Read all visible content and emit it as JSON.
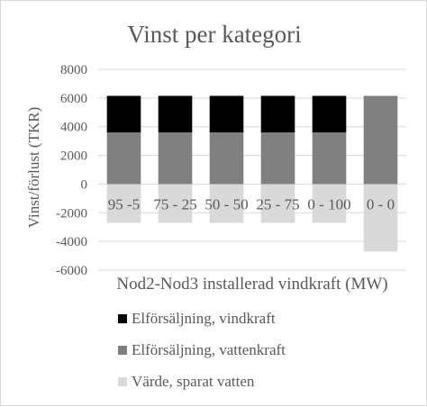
{
  "chart_data": {
    "type": "bar",
    "stacked": true,
    "title": "Vinst per kategori",
    "xlabel": "Nod2-Nod3 installerad vindkraft (MW)",
    "ylabel": "Vinst/förlust (TKR)",
    "ylim": [
      -6000,
      8000
    ],
    "yticks": [
      -6000,
      -4000,
      -2000,
      0,
      2000,
      4000,
      6000,
      8000
    ],
    "ytick_labels": [
      "-6000",
      "-4000",
      "-2000",
      "0",
      "2000",
      "4000",
      "6000",
      "8000"
    ],
    "grid": true,
    "legend_position": "bottom",
    "categories": [
      "95 -5",
      "75 - 25",
      "50 - 50",
      "25 - 75",
      "0 - 100",
      "0 - 0"
    ],
    "series": [
      {
        "name": "Värde, sparat vatten",
        "values": [
          -2700,
          -2700,
          -2700,
          -2700,
          -2700,
          -4700
        ],
        "color": "#d9d9d9"
      },
      {
        "name": "Elförsäljning, vattenkraft",
        "values": [
          3600,
          3600,
          3600,
          3600,
          3600,
          6150
        ],
        "color": "#808080"
      },
      {
        "name": "Elförsäljning, vindkraft",
        "values": [
          2550,
          2550,
          2550,
          2550,
          2550,
          0
        ],
        "color": "#000000"
      }
    ],
    "legend_order": [
      2,
      1,
      0
    ]
  }
}
